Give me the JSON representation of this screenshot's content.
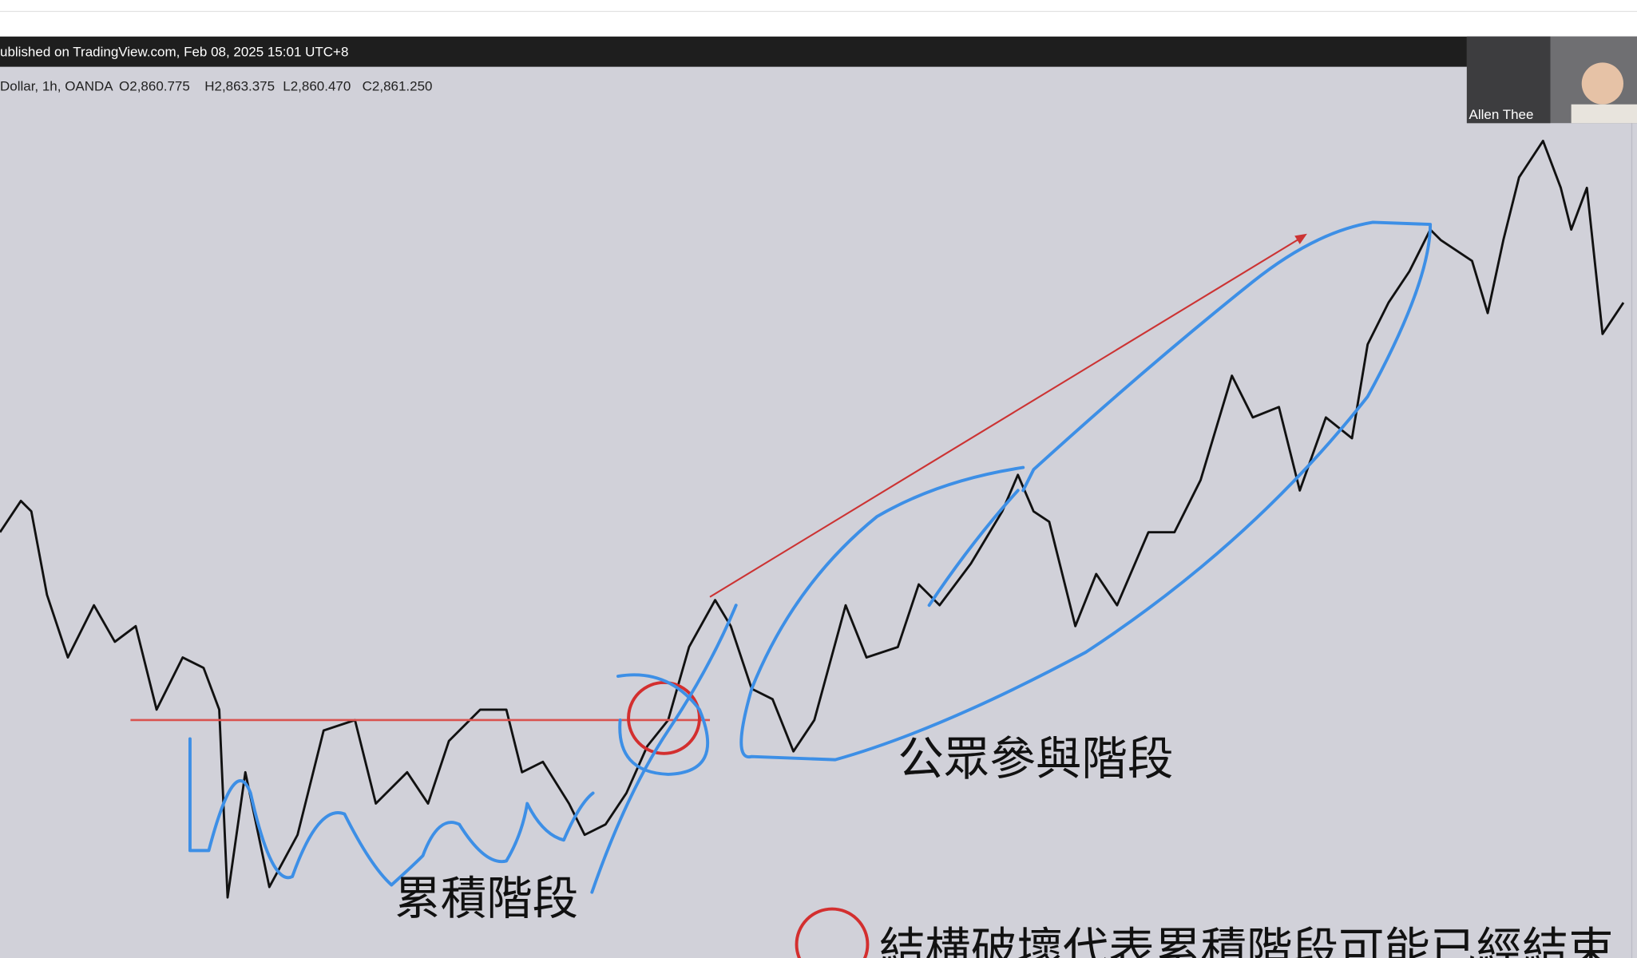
{
  "header": {
    "published": "ublished on TradingView.com, Feb 08, 2025 15:01 UTC+8"
  },
  "symbol": {
    "label": "Dollar, 1h, OANDA",
    "open": "O2,860.775",
    "high": "H2,863.375",
    "low": "L2,860.470",
    "close": "C2,861.250"
  },
  "webcam": {
    "name": "Allen Thee"
  },
  "annotations": {
    "accumulation": "累積階段",
    "public_participation": "公眾參與階段",
    "structure_break": "結構破壞代表累積階段可能已經結束"
  }
}
